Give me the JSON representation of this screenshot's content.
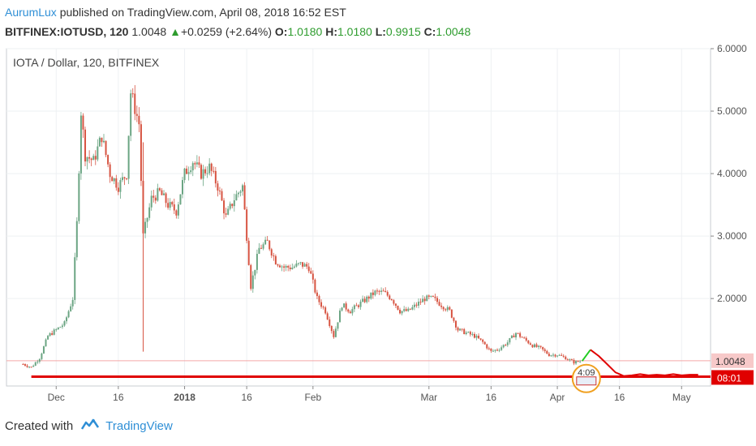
{
  "header": {
    "author": "AurumLux",
    "published_text": "published on TradingView.com, April 08, 2018 16:52 EST"
  },
  "quote": {
    "symbol": "BITFINEX:IOTUSD, 120",
    "last": "1.0048",
    "change": "+0.0259 (+2.64%)",
    "open_label": "O:",
    "open": "1.0180",
    "high_label": "H:",
    "high": "1.0180",
    "low_label": "L:",
    "low": "0.9915",
    "close_label": "C:",
    "close": "1.0048",
    "up_color": "#2e9c2e"
  },
  "chart_data": {
    "type": "candlestick",
    "title": "IOTA / Dollar, 120, BITFINEX",
    "y_ticks": [
      "6.0000",
      "5.0000",
      "4.0000",
      "3.0000",
      "2.0000"
    ],
    "ylim": [
      0.6,
      6.0
    ],
    "x_ticks": [
      "Dec",
      "16",
      "2018",
      "16",
      "Feb",
      "Mar",
      "16",
      "Apr",
      "16",
      "May"
    ],
    "price_series": [
      {
        "x": "Nov 23",
        "y": 0.95
      },
      {
        "x": "Nov 25",
        "y": 0.9
      },
      {
        "x": "Nov 27",
        "y": 1.05
      },
      {
        "x": "Nov 29",
        "y": 1.4
      },
      {
        "x": "Dec 1",
        "y": 1.5
      },
      {
        "x": "Dec 3",
        "y": 1.6
      },
      {
        "x": "Dec 5",
        "y": 2.0
      },
      {
        "x": "Dec 6",
        "y": 3.2
      },
      {
        "x": "Dec 7",
        "y": 5.0
      },
      {
        "x": "Dec 8",
        "y": 4.3
      },
      {
        "x": "Dec 10",
        "y": 4.2
      },
      {
        "x": "Dec 12",
        "y": 4.6
      },
      {
        "x": "Dec 14",
        "y": 4.0
      },
      {
        "x": "Dec 16",
        "y": 3.8
      },
      {
        "x": "Dec 18",
        "y": 4.0
      },
      {
        "x": "Dec 19",
        "y": 5.3
      },
      {
        "x": "Dec 21",
        "y": 4.8
      },
      {
        "x": "Dec 22",
        "y": 3.0
      },
      {
        "x": "Dec 24",
        "y": 3.6
      },
      {
        "x": "Dec 26",
        "y": 3.7
      },
      {
        "x": "Dec 28",
        "y": 3.5
      },
      {
        "x": "Dec 30",
        "y": 3.4
      },
      {
        "x": "Jan 1",
        "y": 4.0
      },
      {
        "x": "Jan 3",
        "y": 4.2
      },
      {
        "x": "Jan 5",
        "y": 4.0
      },
      {
        "x": "Jan 7",
        "y": 4.1
      },
      {
        "x": "Jan 9",
        "y": 3.8
      },
      {
        "x": "Jan 11",
        "y": 3.3
      },
      {
        "x": "Jan 13",
        "y": 3.6
      },
      {
        "x": "Jan 15",
        "y": 3.8
      },
      {
        "x": "Jan 17",
        "y": 2.2
      },
      {
        "x": "Jan 19",
        "y": 2.8
      },
      {
        "x": "Jan 21",
        "y": 2.9
      },
      {
        "x": "Jan 23",
        "y": 2.6
      },
      {
        "x": "Jan 25",
        "y": 2.5
      },
      {
        "x": "Jan 27",
        "y": 2.5
      },
      {
        "x": "Jan 29",
        "y": 2.55
      },
      {
        "x": "Jan 31",
        "y": 2.5
      },
      {
        "x": "Feb 2",
        "y": 2.0
      },
      {
        "x": "Feb 4",
        "y": 1.8
      },
      {
        "x": "Feb 6",
        "y": 1.4
      },
      {
        "x": "Feb 8",
        "y": 1.9
      },
      {
        "x": "Feb 10",
        "y": 1.8
      },
      {
        "x": "Feb 12",
        "y": 1.9
      },
      {
        "x": "Feb 14",
        "y": 2.0
      },
      {
        "x": "Feb 16",
        "y": 2.1
      },
      {
        "x": "Feb 18",
        "y": 2.1
      },
      {
        "x": "Feb 20",
        "y": 2.0
      },
      {
        "x": "Feb 22",
        "y": 1.8
      },
      {
        "x": "Feb 24",
        "y": 1.8
      },
      {
        "x": "Feb 26",
        "y": 1.9
      },
      {
        "x": "Feb 28",
        "y": 2.0
      },
      {
        "x": "Mar 2",
        "y": 2.0
      },
      {
        "x": "Mar 4",
        "y": 1.9
      },
      {
        "x": "Mar 6",
        "y": 1.8
      },
      {
        "x": "Mar 8",
        "y": 1.5
      },
      {
        "x": "Mar 10",
        "y": 1.45
      },
      {
        "x": "Mar 12",
        "y": 1.4
      },
      {
        "x": "Mar 14",
        "y": 1.3
      },
      {
        "x": "Mar 16",
        "y": 1.15
      },
      {
        "x": "Mar 18",
        "y": 1.2
      },
      {
        "x": "Mar 20",
        "y": 1.3
      },
      {
        "x": "Mar 22",
        "y": 1.45
      },
      {
        "x": "Mar 24",
        "y": 1.35
      },
      {
        "x": "Mar 26",
        "y": 1.25
      },
      {
        "x": "Mar 28",
        "y": 1.2
      },
      {
        "x": "Mar 30",
        "y": 1.1
      },
      {
        "x": "Apr 1",
        "y": 1.1
      },
      {
        "x": "Apr 3",
        "y": 1.05
      },
      {
        "x": "Apr 5",
        "y": 0.98
      },
      {
        "x": "Apr 7",
        "y": 1.0
      }
    ],
    "support_level": 0.75,
    "reference_line": 1.0048,
    "price_label": "1.0048",
    "countdown_label": "08:01",
    "forecast_green": [
      {
        "x": "Apr 7",
        "y": 1.0
      },
      {
        "x": "Apr 9",
        "y": 1.18
      }
    ],
    "forecast_red": [
      {
        "x": "Apr 9",
        "y": 1.18
      },
      {
        "x": "Apr 11",
        "y": 1.08
      },
      {
        "x": "Apr 13",
        "y": 0.95
      },
      {
        "x": "Apr 15",
        "y": 0.82
      },
      {
        "x": "Apr 17",
        "y": 0.76
      },
      {
        "x": "Apr 19",
        "y": 0.77
      },
      {
        "x": "Apr 21",
        "y": 0.79
      },
      {
        "x": "Apr 23",
        "y": 0.77
      },
      {
        "x": "Apr 25",
        "y": 0.78
      },
      {
        "x": "Apr 27",
        "y": 0.77
      },
      {
        "x": "Apr 29",
        "y": 0.79
      },
      {
        "x": "May 1",
        "y": 0.77
      },
      {
        "x": "May 3",
        "y": 0.78
      },
      {
        "x": "May 5",
        "y": 0.78
      }
    ],
    "event_badge": "4:09",
    "colors": {
      "up": "#6ba583",
      "down": "#d75442",
      "support": "#e00000",
      "forecast_up": "#22cc22",
      "grid": "#eef0f3",
      "ref_line": "#f4a7a7"
    }
  },
  "footer": {
    "created_with": "Created with",
    "brand": "TradingView"
  }
}
